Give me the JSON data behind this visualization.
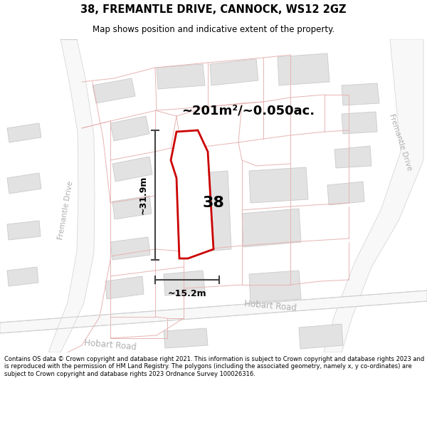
{
  "title": "38, FREMANTLE DRIVE, CANNOCK, WS12 2GZ",
  "subtitle": "Map shows position and indicative extent of the property.",
  "area_label": "~201m²/~0.050ac.",
  "width_label": "~15.2m",
  "height_label": "~31.9m",
  "number_label": "38",
  "footer": "Contains OS data © Crown copyright and database right 2021. This information is subject to Crown copyright and database rights 2023 and is reproduced with the permission of HM Land Registry. The polygons (including the associated geometry, namely x, y co-ordinates) are subject to Crown copyright and database rights 2023 Ordnance Survey 100026316.",
  "bg_color": "#f7f6f2",
  "road_fill": "#ffffff",
  "building_fill": "#e0e0e0",
  "building_edge": "#c8c8c8",
  "road_outline": "#e8b4b4",
  "property_color": "#cc0000",
  "dim_color": "#444444",
  "road_label_color": "#b0b0b0",
  "fremantle_drive_road_fill": "#f0f0f0",
  "hobart_road_fill": "#f0f0f0"
}
